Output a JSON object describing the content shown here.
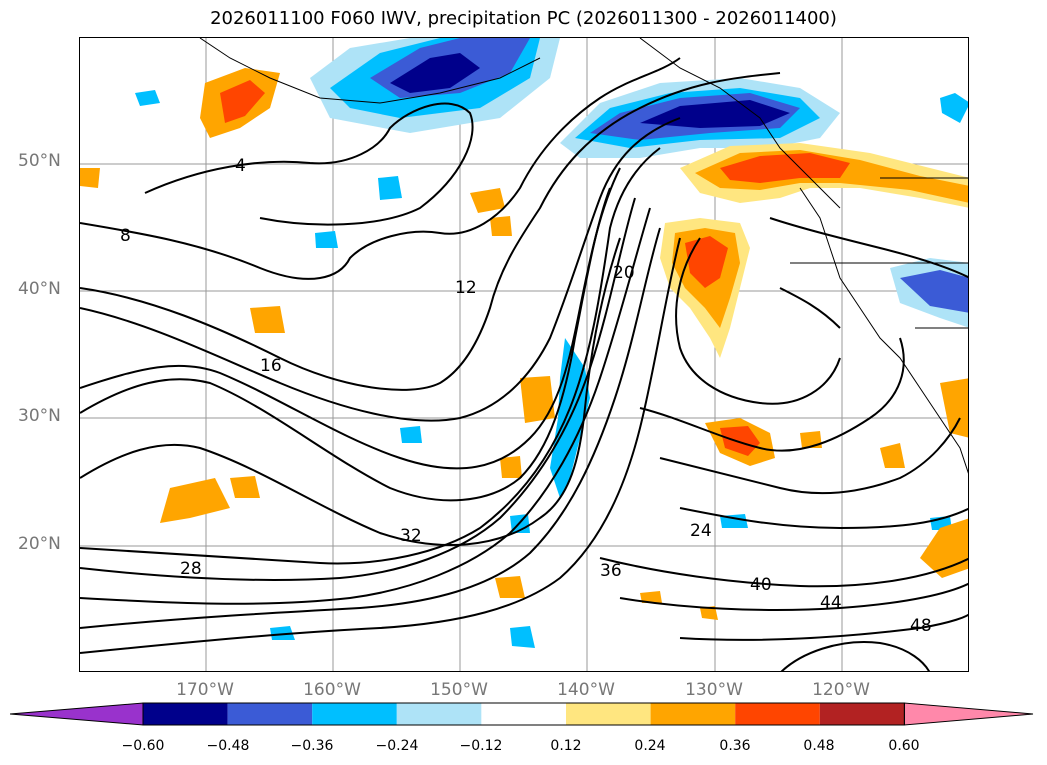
{
  "title": "2026011100 F060 IWV, precipitation PC (2026011300 - 2026011400)",
  "lat_labels": [
    "50°N",
    "40°N",
    "30°N",
    "20°N"
  ],
  "lon_labels": [
    "170°W",
    "160°W",
    "150°W",
    "140°W",
    "130°W",
    "120°W"
  ],
  "contour_labels": [
    "4",
    "8",
    "12",
    "16",
    "20",
    "24",
    "28",
    "32",
    "36",
    "40",
    "44",
    "48"
  ],
  "colorbar": {
    "ticks": [
      "−0.60",
      "−0.48",
      "−0.36",
      "−0.24",
      "−0.12",
      "0.12",
      "0.24",
      "0.36",
      "0.48",
      "0.60"
    ],
    "colors": [
      "#9932cc",
      "#00008b",
      "#3b5bd6",
      "#00bfff",
      "#aee3f7",
      "#ffffff",
      "#ffe680",
      "#ffa500",
      "#ff4500",
      "#b22222",
      "#ff88aa"
    ]
  }
}
